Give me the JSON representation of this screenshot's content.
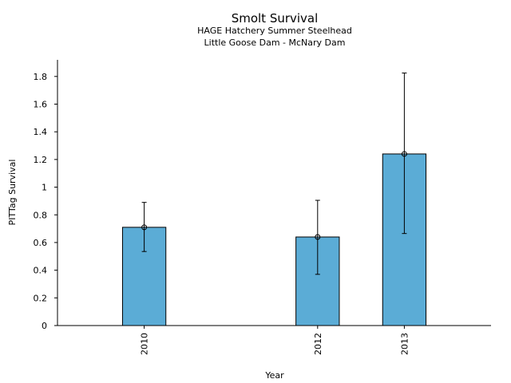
{
  "chart_data": {
    "type": "bar",
    "title": "Smolt Survival",
    "subtitle": [
      "HAGE Hatchery Summer Steelhead",
      "Little Goose Dam - McNary Dam"
    ],
    "xlabel": "Year",
    "ylabel": "PITTag Survival",
    "x": [
      2010,
      2012,
      2013
    ],
    "x_tick_labels": [
      "2010",
      "2012",
      "2013"
    ],
    "values": [
      0.71,
      0.64,
      1.24
    ],
    "error_low": [
      0.535,
      0.37,
      0.665
    ],
    "error_high": [
      0.89,
      0.905,
      1.825
    ],
    "xlim": [
      2009.0,
      2014.0
    ],
    "ylim": [
      0,
      1.92
    ],
    "y_ticks": [
      0,
      0.2,
      0.4,
      0.6,
      0.8,
      1,
      1.2,
      1.4,
      1.6,
      1.8
    ],
    "y_tick_labels": [
      "0",
      "0.2",
      "0.4",
      "0.6",
      "0.8",
      "1",
      "1.2",
      "1.4",
      "1.6",
      "1.8"
    ],
    "bar_color": "#5bacd6",
    "grid": false
  }
}
